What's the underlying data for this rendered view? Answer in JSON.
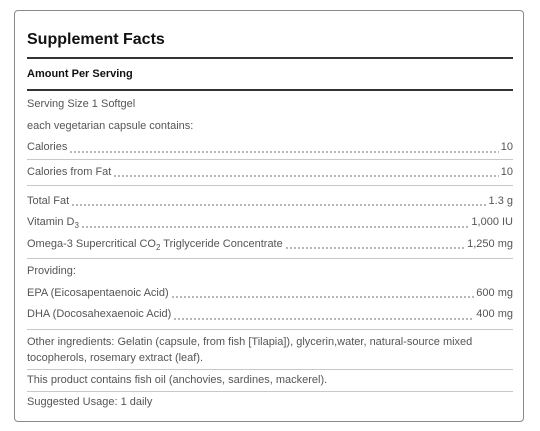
{
  "title": "Supplement Facts",
  "amount_header": "Amount Per Serving",
  "serving_size": "Serving Size 1 Softgel",
  "capsule_note": "each vegetarian capsule contains:",
  "calories": {
    "label": "Calories",
    "value": "10"
  },
  "calories_from_fat": {
    "label": "Calories from Fat",
    "value": "10"
  },
  "total_fat": {
    "label": "Total Fat",
    "value": "1.3 g"
  },
  "vitamin_d": {
    "label": "Vitamin D",
    "label_sub": "3",
    "value": "1,000 IU"
  },
  "omega3": {
    "label": "Omega-3 Supercritical CO",
    "label_sub": "2",
    "label_rest": " Triglyceride Concentrate",
    "value": "1,250 mg"
  },
  "providing": "Providing:",
  "epa": {
    "label": "EPA (Eicosapentaenoic Acid)",
    "value": "600 mg"
  },
  "dha": {
    "label": "DHA (Docosahexaenoic Acid)",
    "value": "400 mg"
  },
  "other_ingredients": "Other ingredients: Gelatin (capsule, from fish [Tilapia]), glycerin,water, natural-source mixed tocopherols, rosemary extract (leaf).",
  "fish_oil_note": "This product contains fish oil (anchovies, sardines, mackerel).",
  "suggested_usage": "Suggested Usage: 1 daily"
}
